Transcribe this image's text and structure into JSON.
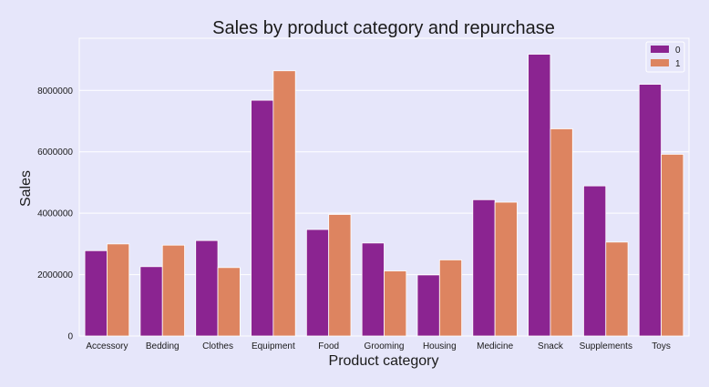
{
  "chart_data": {
    "type": "bar",
    "title": "Sales by product category and repurchase",
    "xlabel": "Product category",
    "ylabel": "Sales",
    "categories": [
      "Accessory",
      "Bedding",
      "Clothes",
      "Equipment",
      "Food",
      "Grooming",
      "Housing",
      "Medicine",
      "Snack",
      "Supplements",
      "Toys"
    ],
    "series": [
      {
        "name": "0",
        "color": "#8b2491",
        "values": [
          2780000,
          2260000,
          3110000,
          7680000,
          3470000,
          3030000,
          1990000,
          4440000,
          9180000,
          4890000,
          8200000
        ]
      },
      {
        "name": "1",
        "color": "#dd8460",
        "values": [
          3000000,
          2960000,
          2230000,
          8640000,
          3960000,
          2120000,
          2480000,
          4360000,
          6750000,
          3060000,
          5920000
        ]
      }
    ],
    "ylim": [
      0,
      9700000
    ],
    "yticks": [
      0,
      2000000,
      4000000,
      6000000,
      8000000
    ],
    "ytick_labels": [
      "0",
      "2000000",
      "4000000",
      "6000000",
      "8000000"
    ],
    "grid": true,
    "legend_position": "top-right",
    "background_color": "#e6e6fa",
    "plot_background_color": "#e6e6fa"
  }
}
